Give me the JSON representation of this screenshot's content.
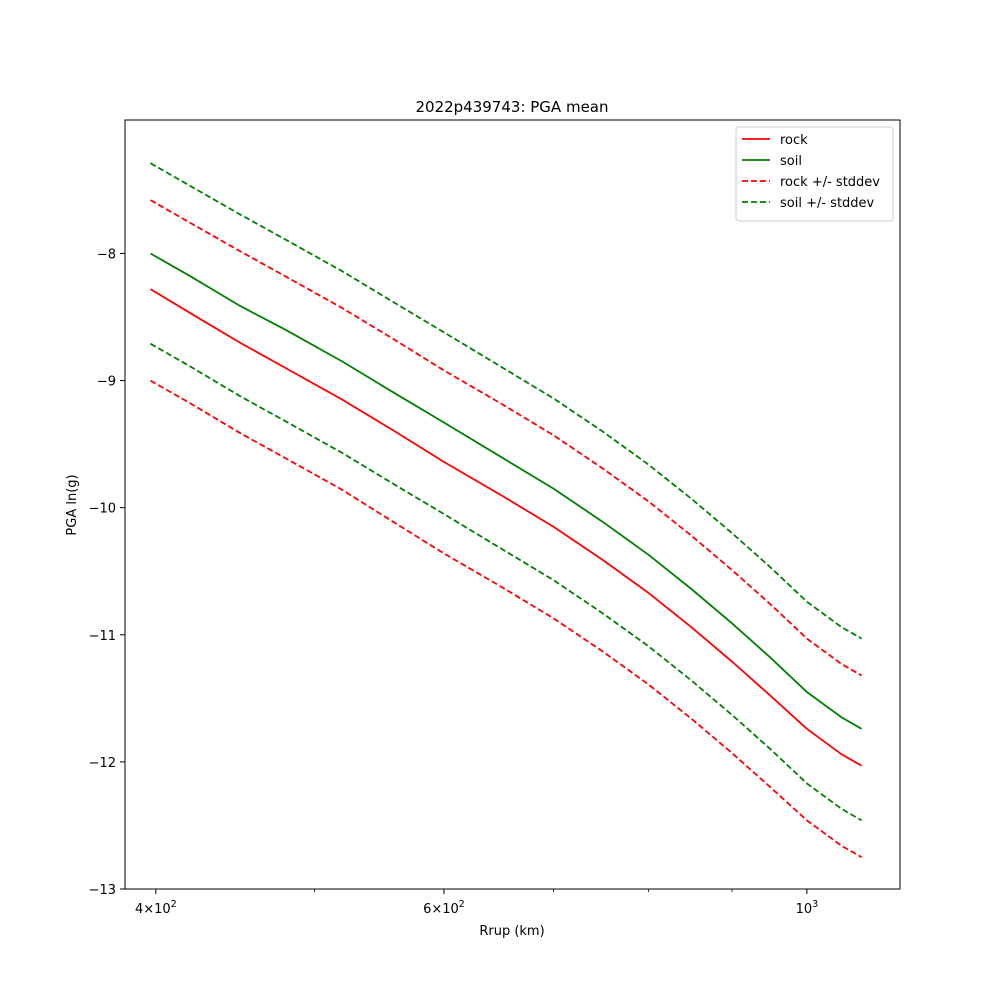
{
  "chart_data": {
    "type": "line",
    "title": "2022p439743: PGA mean",
    "xlabel": "Rrup (km)",
    "ylabel": "PGA ln(g)",
    "xscale": "log",
    "xlim": [
      383,
      1140
    ],
    "ylim": [
      -13,
      -6.95
    ],
    "x_ticks": [
      {
        "value": 400,
        "mantissa": "4",
        "base": "10",
        "exp": "2"
      },
      {
        "value": 600,
        "mantissa": "6",
        "base": "10",
        "exp": "2"
      },
      {
        "value": 1000,
        "mantissa": "",
        "base": "10",
        "exp": "3"
      }
    ],
    "x_minor_ticks": [
      500,
      700,
      800,
      900
    ],
    "y_ticks": [
      {
        "value": -8,
        "label": "−8"
      },
      {
        "value": -9,
        "label": "−9"
      },
      {
        "value": -10,
        "label": "−10"
      },
      {
        "value": -11,
        "label": "−11"
      },
      {
        "value": -12,
        "label": "−12"
      },
      {
        "value": -13,
        "label": "−13"
      }
    ],
    "grid": false,
    "legend_position": "top-right",
    "x": [
      397,
      420,
      450,
      480,
      520,
      560,
      600,
      650,
      700,
      750,
      800,
      850,
      900,
      950,
      1000,
      1050,
      1080
    ],
    "series": [
      {
        "name": "rock",
        "color": "#ff0000",
        "dash": "solid",
        "values": [
          -8.28,
          -8.47,
          -8.7,
          -8.9,
          -9.15,
          -9.4,
          -9.64,
          -9.9,
          -10.15,
          -10.41,
          -10.67,
          -10.94,
          -11.21,
          -11.48,
          -11.74,
          -11.94,
          -12.03
        ]
      },
      {
        "name": "soil",
        "color": "#008000",
        "dash": "solid",
        "values": [
          -8.0,
          -8.18,
          -8.41,
          -8.6,
          -8.85,
          -9.1,
          -9.33,
          -9.6,
          -9.85,
          -10.11,
          -10.37,
          -10.64,
          -10.91,
          -11.18,
          -11.45,
          -11.65,
          -11.74
        ]
      },
      {
        "name": "rock +/- stddev",
        "color": "#ff0000",
        "dash": "dashed",
        "hide_in_legend": false,
        "values": [
          -7.58,
          -7.76,
          -7.98,
          -8.18,
          -8.43,
          -8.68,
          -8.92,
          -9.18,
          -9.43,
          -9.69,
          -9.95,
          -10.22,
          -10.49,
          -10.76,
          -11.03,
          -11.23,
          -11.32
        ]
      },
      {
        "name": "rock +/- stddev",
        "color": "#ff0000",
        "dash": "dashed",
        "hide_in_legend": true,
        "values": [
          -9.0,
          -9.18,
          -9.41,
          -9.61,
          -9.86,
          -10.12,
          -10.36,
          -10.62,
          -10.87,
          -11.13,
          -11.39,
          -11.66,
          -11.93,
          -12.2,
          -12.46,
          -12.66,
          -12.75
        ]
      },
      {
        "name": "soil +/- stddev",
        "color": "#008000",
        "dash": "dashed",
        "hide_in_legend": false,
        "values": [
          -7.29,
          -7.47,
          -7.69,
          -7.89,
          -8.14,
          -8.39,
          -8.62,
          -8.89,
          -9.14,
          -9.4,
          -9.66,
          -9.93,
          -10.2,
          -10.47,
          -10.74,
          -10.94,
          -11.03
        ]
      },
      {
        "name": "soil +/- stddev",
        "color": "#008000",
        "dash": "dashed",
        "hide_in_legend": true,
        "values": [
          -8.71,
          -8.89,
          -9.12,
          -9.32,
          -9.57,
          -9.82,
          -10.05,
          -10.32,
          -10.57,
          -10.83,
          -11.09,
          -11.36,
          -11.63,
          -11.9,
          -12.17,
          -12.37,
          -12.46
        ]
      }
    ]
  }
}
